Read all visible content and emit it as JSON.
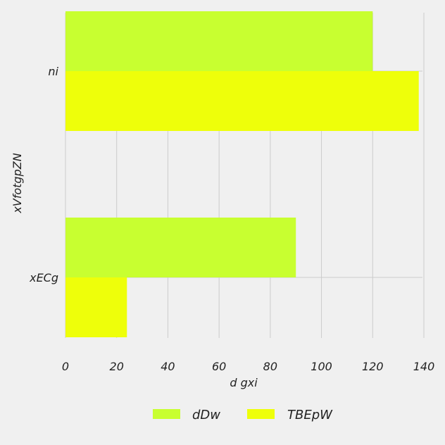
{
  "chart_data": {
    "type": "bar",
    "orientation": "horizontal",
    "categories": [
      "ni",
      "xECg"
    ],
    "series": [
      {
        "name": "dDw",
        "values": [
          120,
          90
        ],
        "color": "#c8ff30"
      },
      {
        "name": "TBEpW",
        "values": [
          138,
          24
        ],
        "color": "#eeff0a"
      }
    ],
    "xlabel": "d gxi",
    "ylabel": "xVfotgpZN",
    "xlim": [
      0,
      140
    ],
    "xticks": [
      "0",
      "20",
      "40",
      "60",
      "80",
      "100",
      "120",
      "140"
    ],
    "grid": true,
    "legend_position": "bottom-center",
    "background": "#f0f0f0",
    "grid_color": "#cbcbcb"
  }
}
